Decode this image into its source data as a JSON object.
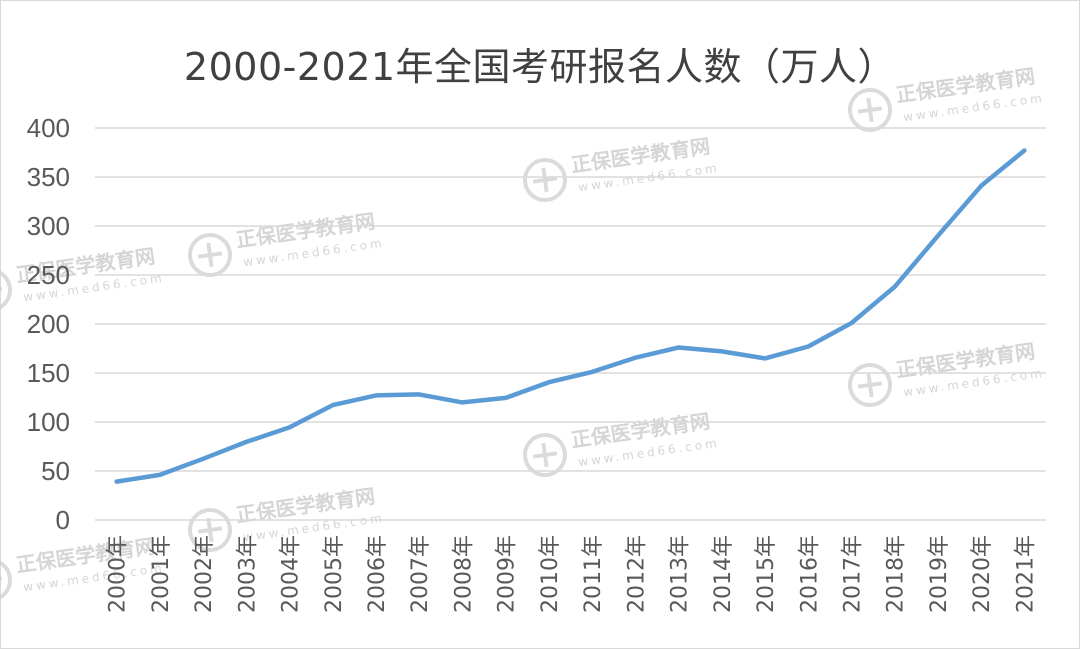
{
  "chart_data": {
    "type": "line",
    "title": "2000-2021年全国考研报名人数（万人）",
    "xlabel": "",
    "ylabel": "",
    "categories": [
      "2000年",
      "2001年",
      "2002年",
      "2003年",
      "2004年",
      "2005年",
      "2006年",
      "2007年",
      "2008年",
      "2009年",
      "2010年",
      "2011年",
      "2012年",
      "2013年",
      "2014年",
      "2015年",
      "2016年",
      "2017年",
      "2018年",
      "2019年",
      "2020年",
      "2021年"
    ],
    "series": [
      {
        "values": [
          39.2,
          46,
          62.4,
          79.7,
          94.5,
          117.2,
          127.12,
          128.2,
          120,
          124.6,
          140.6,
          151.1,
          165.6,
          176,
          172,
          164.9,
          177,
          201,
          238,
          290,
          341,
          377
        ]
      }
    ],
    "ylim": [
      0,
      400
    ],
    "yticks": [
      0,
      50,
      100,
      150,
      200,
      250,
      300,
      350,
      400
    ],
    "grid": true,
    "legend": "none",
    "line_color": "#5b9bd5",
    "grid_color": "#d9d9d9"
  },
  "watermark": {
    "brand": "正保医学教育网",
    "url": "www.med66.com"
  }
}
